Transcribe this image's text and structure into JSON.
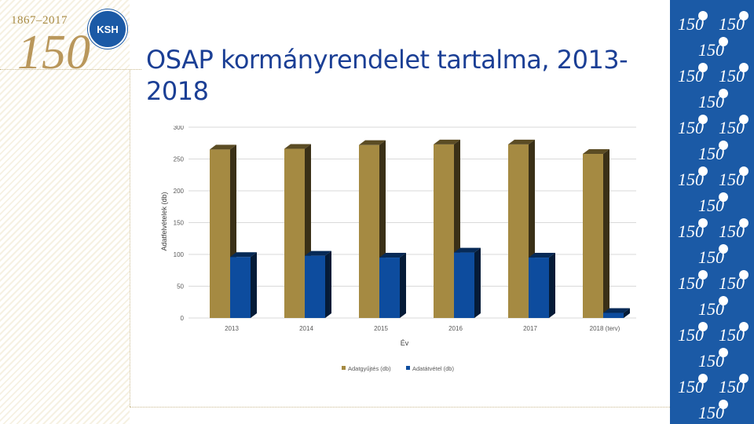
{
  "brand": {
    "years": "1867–2017",
    "anniversary": "150",
    "org": "KSH"
  },
  "slide": {
    "title": "OSAP kormányrendelet tartalma, 2013-2018"
  },
  "colors": {
    "title": "#1b3f95",
    "series1": "#a58a42",
    "series2": "#0d4c9e",
    "panel": "#1b5aa6"
  },
  "chart_data": {
    "type": "bar",
    "title": "",
    "xlabel": "Év",
    "ylabel": "Adatfelvételek (db)",
    "ylim": [
      0,
      300
    ],
    "yticks": [
      0,
      50,
      100,
      150,
      200,
      250,
      300
    ],
    "grid": true,
    "legend": "bottom",
    "categories": [
      "2013",
      "2014",
      "2015",
      "2016",
      "2017",
      "2018 (terv)"
    ],
    "series": [
      {
        "name": "Adatgyűjtés (db)",
        "values": [
          265,
          266,
          272,
          273,
          273,
          258
        ]
      },
      {
        "name": "Adatátvétel (db)",
        "values": [
          96,
          98,
          95,
          103,
          95,
          8
        ]
      }
    ]
  }
}
